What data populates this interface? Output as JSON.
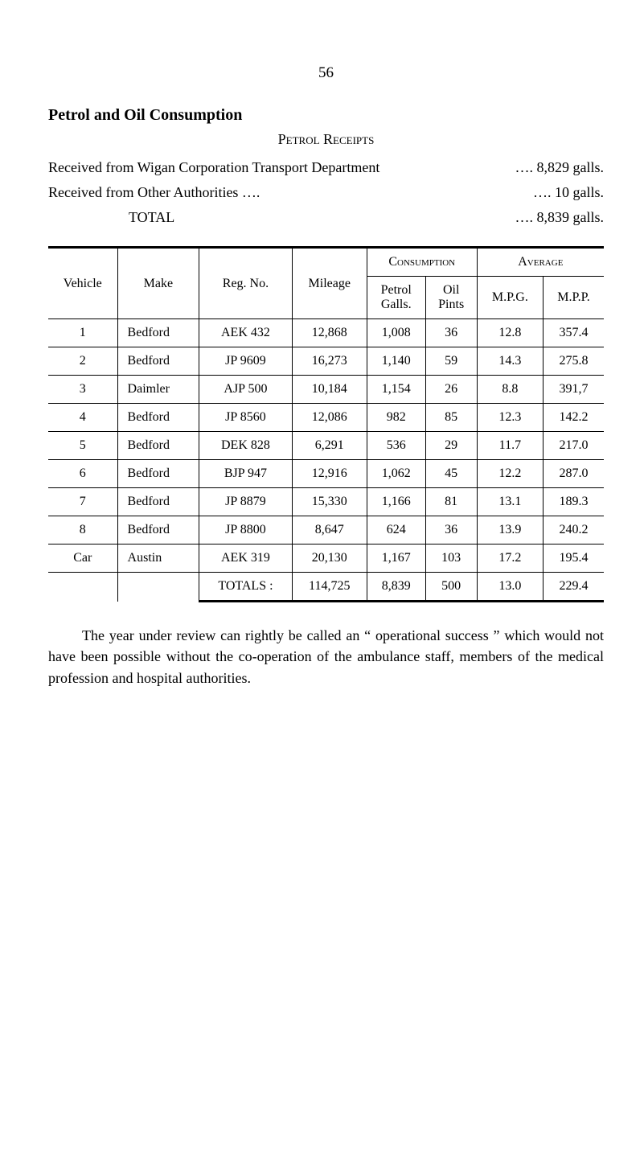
{
  "page_number": "56",
  "section_title": "Petrol and Oil Consumption",
  "subsection_title": "Petrol Receipts",
  "receipts": [
    {
      "label": "Received from Wigan Corporation Transport Department",
      "value": "…. 8,829 galls."
    },
    {
      "label": "Received from Other Authorities ….",
      "value": "….     10 galls."
    },
    {
      "label": "TOTAL",
      "value": "…. 8,839 galls."
    }
  ],
  "table_headers": {
    "vehicle": "Vehicle",
    "make": "Make",
    "reg_no": "Reg. No.",
    "mileage": "Mileage",
    "consumption": "Consumption",
    "average": "Average",
    "petrol_galls": "Petrol\nGalls.",
    "oil_pints": "Oil\nPints",
    "mpg": "M.P.G.",
    "mpp": "M.P.P."
  },
  "table_rows": [
    {
      "vehicle": "1",
      "make": "Bedford",
      "reg_no": "AEK 432",
      "mileage": "12,868",
      "petrol": "1,008",
      "oil": "36",
      "mpg": "12.8",
      "mpp": "357.4"
    },
    {
      "vehicle": "2",
      "make": "Bedford",
      "reg_no": "JP 9609",
      "mileage": "16,273",
      "petrol": "1,140",
      "oil": "59",
      "mpg": "14.3",
      "mpp": "275.8"
    },
    {
      "vehicle": "3",
      "make": "Daimler",
      "reg_no": "AJP 500",
      "mileage": "10,184",
      "petrol": "1,154",
      "oil": "26",
      "mpg": "8.8",
      "mpp": "391,7"
    },
    {
      "vehicle": "4",
      "make": "Bedford",
      "reg_no": "JP 8560",
      "mileage": "12,086",
      "petrol": "982",
      "oil": "85",
      "mpg": "12.3",
      "mpp": "142.2"
    },
    {
      "vehicle": "5",
      "make": "Bedford",
      "reg_no": "DEK 828",
      "mileage": "6,291",
      "petrol": "536",
      "oil": "29",
      "mpg": "11.7",
      "mpp": "217.0"
    },
    {
      "vehicle": "6",
      "make": "Bedford",
      "reg_no": "BJP 947",
      "mileage": "12,916",
      "petrol": "1,062",
      "oil": "45",
      "mpg": "12.2",
      "mpp": "287.0"
    },
    {
      "vehicle": "7",
      "make": "Bedford",
      "reg_no": "JP 8879",
      "mileage": "15,330",
      "petrol": "1,166",
      "oil": "81",
      "mpg": "13.1",
      "mpp": "189.3"
    },
    {
      "vehicle": "8",
      "make": "Bedford",
      "reg_no": "JP 8800",
      "mileage": "8,647",
      "petrol": "624",
      "oil": "36",
      "mpg": "13.9",
      "mpp": "240.2"
    },
    {
      "vehicle": "Car",
      "make": "Austin",
      "reg_no": "AEK 319",
      "mileage": "20,130",
      "petrol": "1,167",
      "oil": "103",
      "mpg": "17.2",
      "mpp": "195.4"
    }
  ],
  "totals_row": {
    "label": "TOTALS :",
    "mileage": "114,725",
    "petrol": "8,839",
    "oil": "500",
    "mpg": "13.0",
    "mpp": "229.4"
  },
  "paragraph": "The year under review can rightly be called an “ operational success ” which would not have been possible without the co-operation of the ambulance staff, members of the medical profession and hospital authorities."
}
